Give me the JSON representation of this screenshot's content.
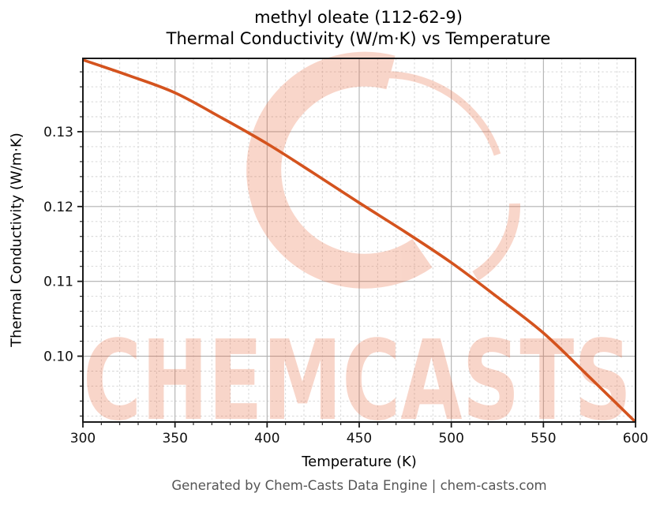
{
  "header": {
    "title_line1": "methyl oleate (112-62-9)",
    "title_line2": "Thermal Conductivity (W/m·K) vs Temperature"
  },
  "footer": {
    "text": "Generated by Chem-Casts Data Engine | chem-casts.com"
  },
  "watermark": {
    "text": "CHEMCASTS",
    "color": "#e8663c"
  },
  "chart_data": {
    "type": "line",
    "title": "methyl oleate (112-62-9)\nThermal Conductivity (W/m·K) vs Temperature",
    "xlabel": "Temperature (K)",
    "ylabel": "Thermal Conductivity (W/m·K)",
    "xlim": [
      300,
      600
    ],
    "ylim": [
      0.0912,
      0.1398
    ],
    "x_ticks": [
      300,
      350,
      400,
      450,
      500,
      550,
      600
    ],
    "x_tick_labels": [
      "300",
      "350",
      "400",
      "450",
      "500",
      "550",
      "600"
    ],
    "y_ticks": [
      0.1,
      0.11,
      0.12,
      0.13
    ],
    "y_tick_labels": [
      "0.10",
      "0.11",
      "0.12",
      "0.13"
    ],
    "x_minor_step": 10,
    "y_minor_step": 0.002,
    "grid": true,
    "legend": "none",
    "line_color": "#d4531e",
    "series": [
      {
        "name": "thermal_conductivity",
        "x": [
          300,
          325,
          350,
          375,
          400,
          425,
          450,
          475,
          500,
          525,
          550,
          575,
          600
        ],
        "y": [
          0.1396,
          0.1375,
          0.1352,
          0.1319,
          0.1284,
          0.1245,
          0.1205,
          0.1166,
          0.1125,
          0.1079,
          0.1031,
          0.0972,
          0.0912
        ]
      }
    ]
  }
}
